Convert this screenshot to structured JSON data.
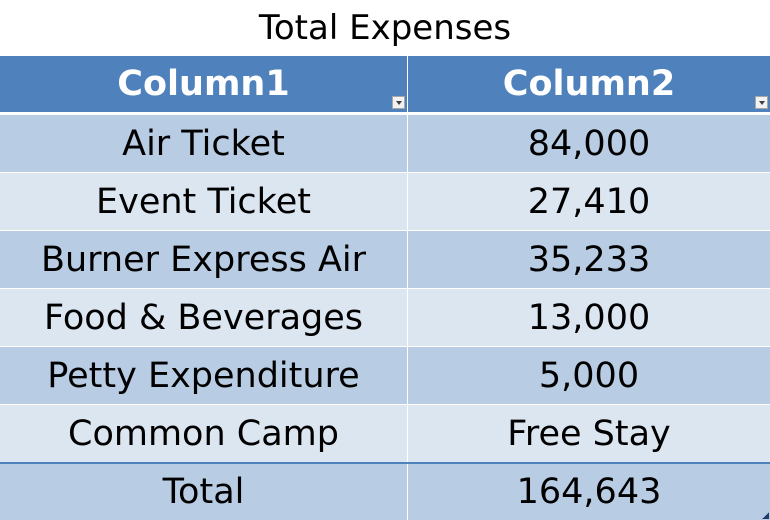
{
  "title": "Total Expenses",
  "table": {
    "headers": [
      "Column1",
      "Column2"
    ],
    "rows": [
      {
        "label": "Air Ticket",
        "value": "84,000"
      },
      {
        "label": "Event Ticket",
        "value": "27,410"
      },
      {
        "label": "Burner Express Air",
        "value": "35,233"
      },
      {
        "label": "Food & Beverages",
        "value": "13,000"
      },
      {
        "label": "Petty Expenditure",
        "value": "5,000"
      },
      {
        "label": "Common Camp",
        "value": "Free Stay"
      }
    ],
    "total": {
      "label": "Total",
      "value": "164,643"
    }
  },
  "colors": {
    "header": "#4f81bd",
    "band_dark": "#b8cce4",
    "band_light": "#dce6f1"
  }
}
